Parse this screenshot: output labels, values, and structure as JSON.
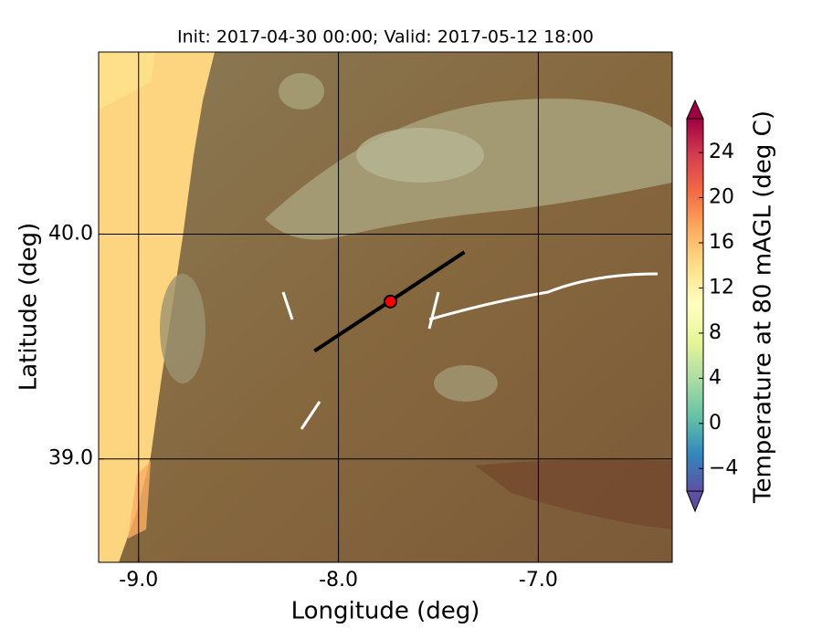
{
  "chart_data": {
    "type": "map",
    "title": "Init: 2017-04-30 00:00; Valid: 2017-05-12 18:00",
    "x_label": "Longitude (deg)",
    "y_label": "Latitude (deg)",
    "xlim": [
      -9.2,
      -6.33
    ],
    "ylim": [
      38.54,
      40.81
    ],
    "xticks": [
      {
        "value": -9,
        "label": "-9.0"
      },
      {
        "value": -8,
        "label": "-8.0"
      },
      {
        "value": -7,
        "label": "-7.0"
      }
    ],
    "yticks": [
      {
        "value": 39,
        "label": "39.0"
      },
      {
        "value": 40,
        "label": "40.0"
      }
    ],
    "grid": true,
    "transect": {
      "lon": [
        -8.12,
        -7.37
      ],
      "lat": [
        39.48,
        39.92
      ],
      "color": "#000000"
    },
    "point": {
      "lon": -7.74,
      "lat": 39.7,
      "color": "#ff0000"
    },
    "colorbar": {
      "label": "Temperature at 80 mAGL (deg C)",
      "lim": [
        -6,
        27
      ],
      "ticks": [
        {
          "value": -4,
          "label": "−4"
        },
        0,
        4,
        8,
        12,
        16,
        20,
        24
      ],
      "colors": [
        "#5e4fa2",
        "#3288bd",
        "#66c2a5",
        "#abdda4",
        "#e6f598",
        "#ffffbf",
        "#fee08b",
        "#fdae61",
        "#f46d43",
        "#d53e4f",
        "#9e0142"
      ]
    }
  }
}
